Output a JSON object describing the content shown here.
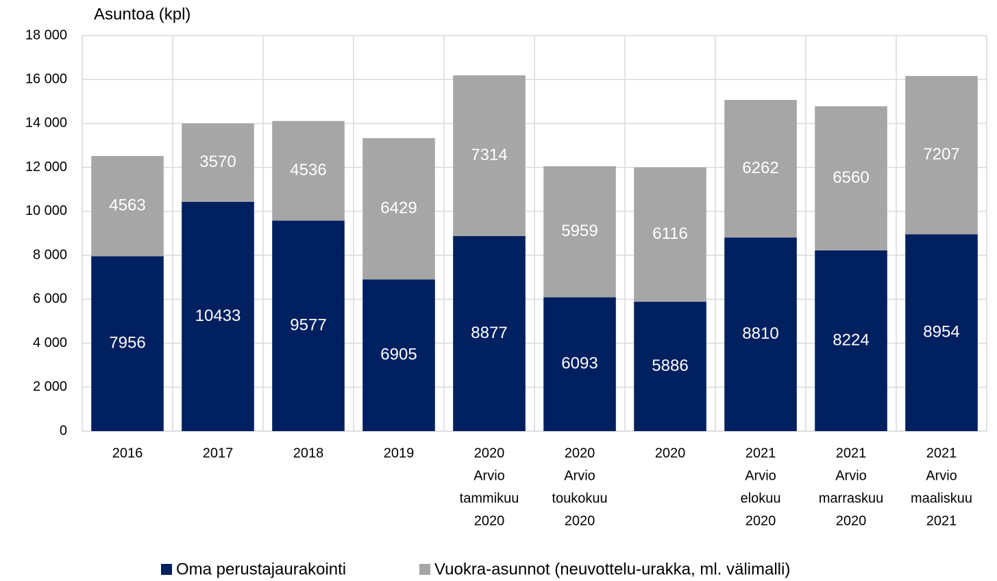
{
  "chart_data": {
    "type": "stacked_bar",
    "y_axis_label": "Asuntoa (kpl)",
    "categories": [
      [
        "2016"
      ],
      [
        "2017"
      ],
      [
        "2018"
      ],
      [
        "2019"
      ],
      [
        "2020",
        "Arvio",
        "tammikuu",
        "2020"
      ],
      [
        "2020",
        "Arvio",
        "toukokuu",
        "2020"
      ],
      [
        "2020"
      ],
      [
        "2021",
        "Arvio",
        "elokuu",
        "2020"
      ],
      [
        "2021",
        "Arvio",
        "marraskuu",
        "2020"
      ],
      [
        "2021",
        "Arvio",
        "maaliskuu",
        "2021"
      ]
    ],
    "series": [
      {
        "name": "Oma perustajaurakointi",
        "color": "#002060",
        "values": [
          7956,
          10433,
          9577,
          6905,
          8877,
          6093,
          5886,
          8810,
          8224,
          8954
        ]
      },
      {
        "name": "Vuokra-asunnot (neuvottelu-urakka, ml. välimalli)",
        "color": "#a6a6a6",
        "values": [
          4563,
          3570,
          4536,
          6429,
          7314,
          5959,
          6116,
          6262,
          6560,
          7207
        ]
      }
    ],
    "ylim": [
      0,
      18000
    ],
    "yticks": [
      0,
      {
        "value": 2000,
        "label": "2 000"
      },
      {
        "value": 4000,
        "label": "4 000"
      },
      {
        "value": 6000,
        "label": "6 000"
      },
      {
        "value": 8000,
        "label": "8 000"
      },
      {
        "value": 10000,
        "label": "10 000"
      },
      {
        "value": 12000,
        "label": "12 000"
      },
      {
        "value": 14000,
        "label": "14 000"
      },
      {
        "value": 16000,
        "label": "16 000"
      },
      {
        "value": 18000,
        "label": "18 000"
      }
    ],
    "grid": true,
    "legend": "bottom"
  }
}
